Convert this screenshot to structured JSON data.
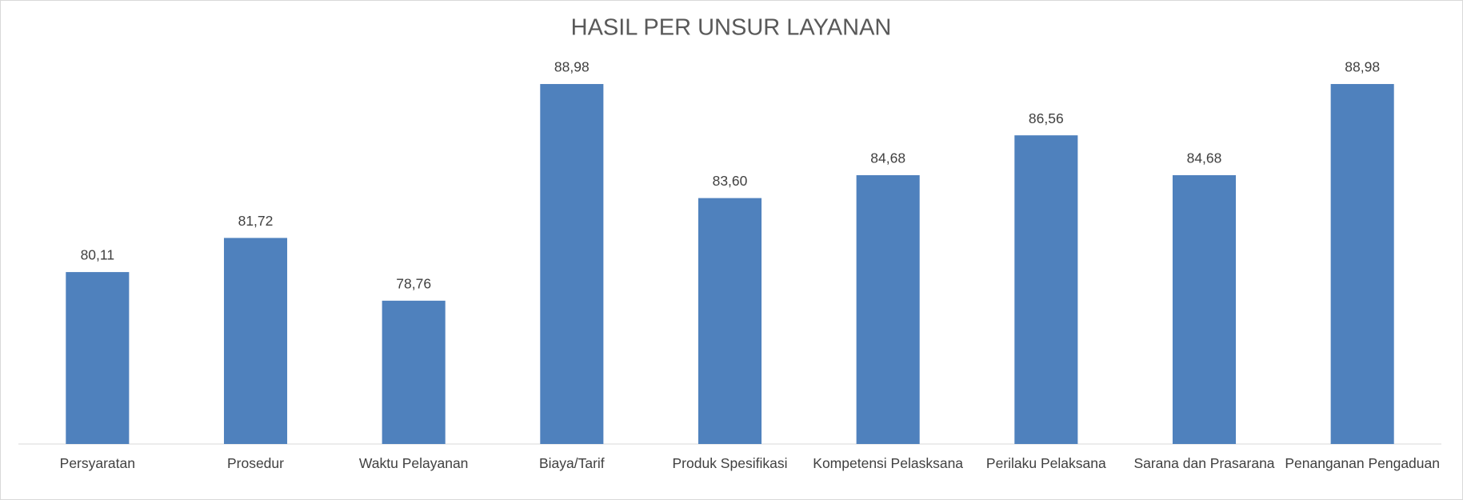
{
  "chart_data": {
    "type": "bar",
    "title": "HASIL PER UNSUR LAYANAN",
    "categories": [
      "Persyaratan",
      "Prosedur",
      "Waktu Pelayanan",
      "Biaya/Tarif",
      "Produk Spesifikasi",
      "Kompetensi Pelasksana",
      "Perilaku Pelaksana",
      "Sarana dan Prasarana",
      "Penanganan Pengaduan"
    ],
    "values": [
      80.11,
      81.72,
      78.76,
      88.98,
      83.6,
      84.68,
      86.56,
      84.68,
      88.98
    ],
    "value_labels": [
      "80,11",
      "81,72",
      "78,76",
      "88,98",
      "83,60",
      "84,68",
      "86,56",
      "84,68",
      "88,98"
    ],
    "color": "#4f81bd",
    "ylim": [
      72,
      90
    ],
    "grid": false
  }
}
